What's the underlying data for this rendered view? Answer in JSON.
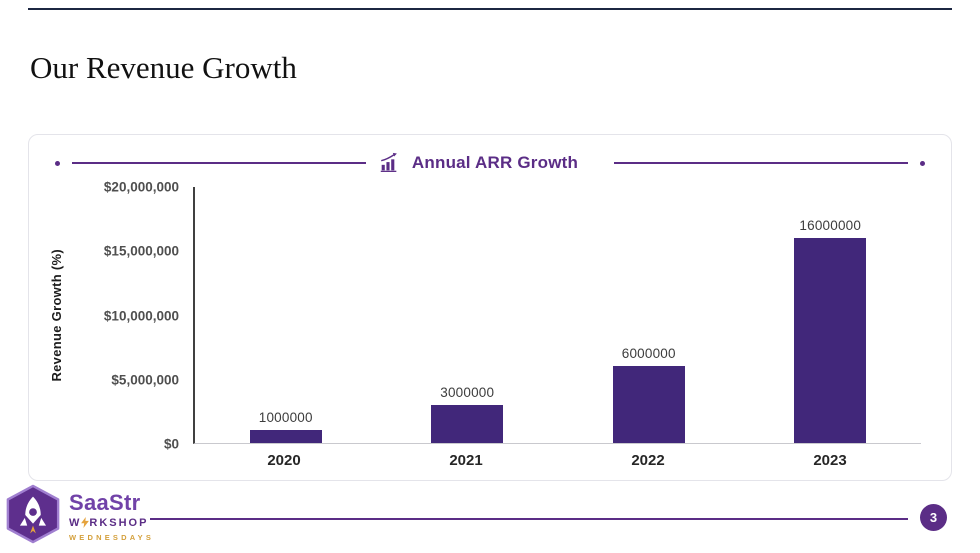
{
  "slide": {
    "title": "Our Revenue Growth"
  },
  "chart_data": {
    "type": "bar",
    "title": "Annual ARR Growth",
    "categories": [
      "2020",
      "2021",
      "2022",
      "2023"
    ],
    "values": [
      1000000,
      3000000,
      6000000,
      16000000
    ],
    "bar_labels": [
      "1000000",
      "3000000",
      "6000000",
      "16000000"
    ],
    "xlabel": "",
    "ylabel": "Revenue Growth (%)",
    "ylim": [
      0,
      20000000
    ],
    "ytick_labels": [
      "$0",
      "$5,000,000",
      "$10,000,000",
      "$15,000,000",
      "$20,000,000"
    ],
    "grid": false,
    "legend": "none",
    "bar_color": "#41277a",
    "accent_color": "#5b2d86"
  },
  "icons": {
    "header": "bar-chart-rising-icon",
    "logo_shield": "rocket-shield-icon",
    "logo_bolt": "lightning-bolt-icon"
  },
  "footer": {
    "logo": {
      "brand": "SaaStr",
      "workshop_prefix": "W",
      "workshop_suffix": "RKSHOP",
      "wednesdays": "WEDNESDAYS"
    },
    "page_number": "3"
  }
}
